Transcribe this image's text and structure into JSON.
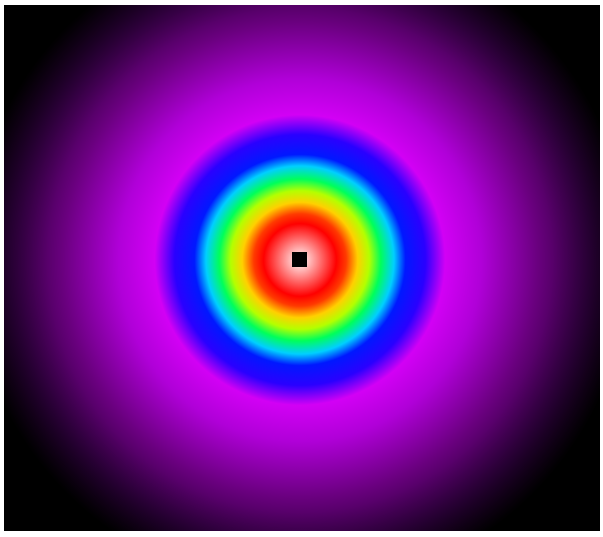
{
  "image": {
    "kind": "false-color radial intensity map",
    "background_color": "#ffffff",
    "colormap": [
      "#000000",
      "#2a0038",
      "#6a007f",
      "#b000d8",
      "#d200f5",
      "#2a00ff",
      "#0018ff",
      "#00cfff",
      "#00ff5a",
      "#b4ff00",
      "#ffd000",
      "#ff3a00",
      "#ff0000",
      "#ffffff"
    ],
    "center_marker_color": "#000000"
  }
}
